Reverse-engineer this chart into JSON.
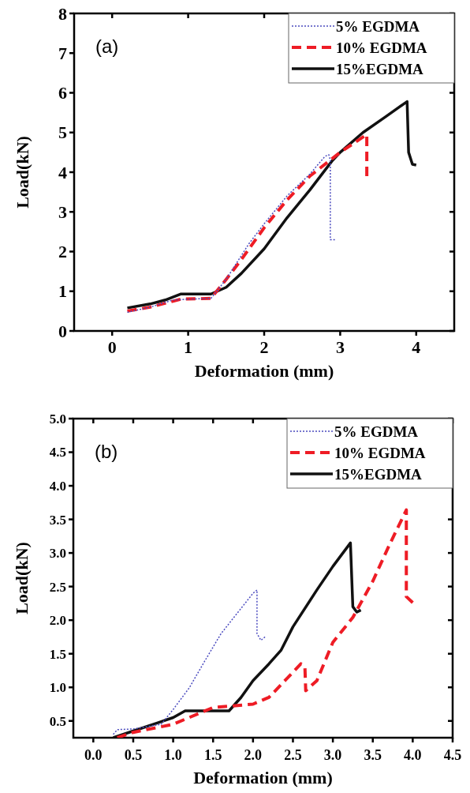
{
  "chart_data": [
    {
      "type": "line",
      "xlabel": "Deformation (mm)",
      "ylabel": "Load(kN)",
      "annotations": [
        "(a)"
      ],
      "xlim": [
        -0.5,
        4.5
      ],
      "ylim": [
        0,
        8
      ],
      "xticks": [
        0,
        1,
        2,
        3,
        4
      ],
      "yticks": [
        0,
        1,
        2,
        3,
        4,
        5,
        6,
        7,
        8
      ],
      "legend": "top right",
      "grid": false,
      "series": [
        {
          "name": "5% EGDMA",
          "color": "#4b4bbf",
          "line_style": "dotted",
          "x": [
            0.2,
            0.5,
            0.8,
            1.0,
            1.3,
            1.5,
            1.8,
            2.0,
            2.3,
            2.6,
            2.8,
            2.85,
            2.87,
            2.87,
            2.93
          ],
          "values": [
            0.47,
            0.6,
            0.78,
            0.8,
            0.82,
            1.3,
            2.2,
            2.7,
            3.4,
            3.95,
            4.4,
            4.44,
            4.3,
            2.3,
            2.3
          ]
        },
        {
          "name": "10% EGDMA",
          "color": "#ee1c25",
          "line_style": "dashed",
          "x": [
            0.2,
            0.5,
            0.8,
            0.9,
            1.3,
            1.5,
            1.7,
            2.0,
            2.3,
            2.6,
            3.0,
            3.35,
            3.35
          ],
          "values": [
            0.5,
            0.6,
            0.75,
            0.8,
            0.82,
            1.3,
            1.8,
            2.6,
            3.3,
            3.9,
            4.5,
            4.95,
            3.9
          ]
        },
        {
          "name": "15%EGDMA",
          "color": "#111111",
          "line_style": "solid",
          "x": [
            0.2,
            0.5,
            0.7,
            0.9,
            1.3,
            1.5,
            1.7,
            2.0,
            2.3,
            2.6,
            2.9,
            3.0,
            3.3,
            3.6,
            3.88,
            3.9,
            3.95,
            4.0
          ],
          "values": [
            0.58,
            0.68,
            0.78,
            0.93,
            0.93,
            1.1,
            1.45,
            2.07,
            2.85,
            3.55,
            4.3,
            4.5,
            5.0,
            5.4,
            5.78,
            4.5,
            4.2,
            4.18
          ]
        }
      ]
    },
    {
      "type": "line",
      "xlabel": "Deformation (mm)",
      "ylabel": "Load(kN)",
      "annotations": [
        "(b)"
      ],
      "xlim": [
        -0.25,
        4.5
      ],
      "ylim": [
        0.25,
        5.0
      ],
      "xticks": [
        {
          "value": 0,
          "label": "0.0"
        },
        0.5,
        {
          "value": 1,
          "label": "1.0"
        },
        1.5,
        {
          "value": 2,
          "label": "2.0"
        },
        2.5,
        {
          "value": 3,
          "label": "3.0"
        },
        3.5,
        {
          "value": 4,
          "label": "4.0"
        },
        4.5
      ],
      "yticks": [
        0.5,
        {
          "value": 1,
          "label": "1.0"
        },
        1.5,
        {
          "value": 2,
          "label": "2.0"
        },
        2.5,
        {
          "value": 3,
          "label": "3.0"
        },
        3.5,
        {
          "value": 4,
          "label": "4.0"
        },
        4.5,
        {
          "value": 5,
          "label": "5.0"
        }
      ],
      "legend": "top right",
      "grid": false,
      "series": [
        {
          "name": "5% EGDMA",
          "color": "#4b4bbf",
          "line_style": "dotted",
          "x": [
            0.25,
            0.3,
            0.5,
            0.85,
            1.0,
            1.2,
            1.4,
            1.6,
            1.8,
            2.0,
            2.05,
            2.05,
            2.1,
            2.15
          ],
          "values": [
            0.3,
            0.37,
            0.38,
            0.45,
            0.67,
            0.99,
            1.4,
            1.8,
            2.1,
            2.4,
            2.45,
            1.8,
            1.7,
            1.75
          ]
        },
        {
          "name": "10% EGDMA",
          "color": "#ee1c25",
          "line_style": "dashed",
          "x": [
            0.3,
            0.5,
            1.0,
            1.5,
            2.0,
            2.2,
            2.4,
            2.6,
            2.65,
            2.66,
            2.8,
            3.0,
            3.25,
            3.5,
            3.7,
            3.92,
            3.92,
            4.0
          ],
          "values": [
            0.25,
            0.33,
            0.45,
            0.7,
            0.75,
            0.85,
            1.1,
            1.35,
            1.3,
            0.95,
            1.1,
            1.67,
            2.04,
            2.58,
            3.1,
            3.64,
            2.35,
            2.26
          ]
        },
        {
          "name": "15%EGDMA",
          "color": "#111111",
          "line_style": "solid",
          "x": [
            0.25,
            0.5,
            0.8,
            1.0,
            1.15,
            1.7,
            1.85,
            2.0,
            2.2,
            2.35,
            2.5,
            2.8,
            3.0,
            3.22,
            3.25,
            3.3,
            3.35
          ],
          "values": [
            0.25,
            0.35,
            0.47,
            0.55,
            0.65,
            0.65,
            0.85,
            1.1,
            1.35,
            1.55,
            1.9,
            2.45,
            2.8,
            3.15,
            2.2,
            2.12,
            2.15
          ]
        }
      ]
    }
  ]
}
